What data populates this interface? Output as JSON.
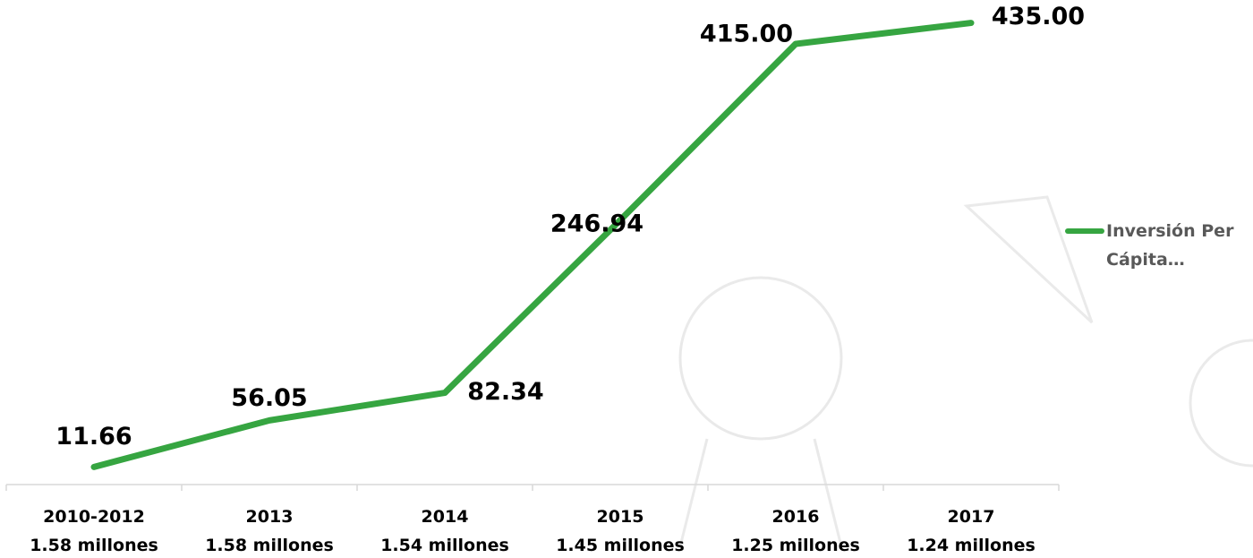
{
  "chart_data": {
    "type": "line",
    "categories": [
      [
        "2010-2012",
        "1.58 millones"
      ],
      [
        "2013",
        "1.58 millones"
      ],
      [
        "2014",
        "1.54 millones"
      ],
      [
        "2015",
        "1.45 millones"
      ],
      [
        "2016",
        "1.25 millones"
      ],
      [
        "2017",
        "1.24 millones"
      ]
    ],
    "series": [
      {
        "name": "Inversión Per Cápita…",
        "color": "#36a541",
        "values": [
          11.66,
          56.05,
          82.34,
          246.94,
          415,
          435
        ],
        "value_labels": [
          "11.66",
          "56.05",
          "82.34",
          "246.94",
          "415.00",
          "435.00"
        ]
      }
    ],
    "ylim": [
      0,
      450
    ]
  }
}
